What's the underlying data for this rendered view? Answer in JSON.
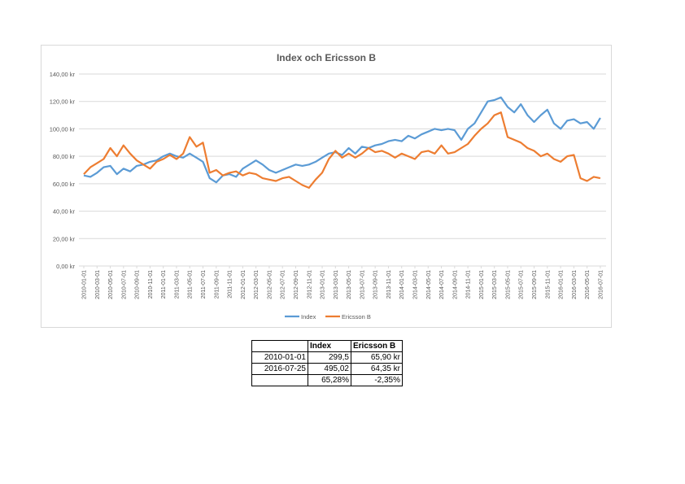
{
  "chart_data": {
    "type": "line",
    "title": "Index och Ericsson B",
    "xlabel": "",
    "ylabel": "",
    "ylim": [
      0,
      140
    ],
    "y_ticks": [
      "0,00 kr",
      "20,00 kr",
      "40,00 kr",
      "60,00 kr",
      "80,00 kr",
      "100,00 kr",
      "120,00 kr",
      "140,00 kr"
    ],
    "y_tick_values": [
      0,
      20,
      40,
      60,
      80,
      100,
      120,
      140
    ],
    "x_ticks": [
      "2010-01-01",
      "2010-03-01",
      "2010-05-01",
      "2010-07-01",
      "2010-09-01",
      "2010-11-01",
      "2011-01-01",
      "2011-03-01",
      "2011-05-01",
      "2011-07-01",
      "2011-09-01",
      "2011-11-01",
      "2012-01-01",
      "2012-03-01",
      "2012-05-01",
      "2012-07-01",
      "2012-09-01",
      "2012-11-01",
      "2013-01-01",
      "2013-03-01",
      "2013-05-01",
      "2013-07-01",
      "2013-09-01",
      "2013-11-01",
      "2014-01-01",
      "2014-03-01",
      "2014-05-01",
      "2014-07-01",
      "2014-09-01",
      "2014-11-01",
      "2015-01-01",
      "2015-03-01",
      "2015-05-01",
      "2015-07-01",
      "2015-09-01",
      "2015-11-01",
      "2016-01-01",
      "2016-03-01",
      "2016-05-01",
      "2016-07-01"
    ],
    "x_note": "monthly points from 2010-01 to 2016-07",
    "grid": true,
    "legend": "bottom",
    "series": [
      {
        "name": "Index",
        "color": "#5b9bd5",
        "values": [
          66,
          65,
          68,
          72,
          73,
          67,
          71,
          69,
          73,
          74,
          76,
          77,
          80,
          82,
          80,
          79,
          82,
          79,
          76,
          64,
          61,
          66,
          67,
          65,
          71,
          74,
          77,
          74,
          70,
          68,
          70,
          72,
          74,
          73,
          74,
          76,
          79,
          82,
          83,
          81,
          86,
          82,
          87,
          86,
          88,
          89,
          91,
          92,
          91,
          95,
          93,
          96,
          98,
          100,
          99,
          100,
          99,
          92,
          100,
          104,
          112,
          120,
          121,
          123,
          116,
          112,
          118,
          110,
          105,
          110,
          114,
          104,
          100,
          106,
          107,
          104,
          105,
          100,
          108
        ]
      },
      {
        "name": "Ericsson B",
        "color": "#ed7d31",
        "values": [
          67,
          72,
          75,
          78,
          86,
          80,
          88,
          82,
          77,
          74,
          71,
          76,
          78,
          81,
          78,
          82,
          94,
          87,
          90,
          68,
          70,
          66,
          68,
          69,
          66,
          68,
          67,
          64,
          63,
          62,
          64,
          65,
          62,
          59,
          57,
          63,
          68,
          78,
          84,
          79,
          82,
          79,
          82,
          86,
          83,
          84,
          82,
          79,
          82,
          80,
          78,
          83,
          84,
          82,
          88,
          82,
          83,
          86,
          89,
          95,
          100,
          104,
          110,
          112,
          94,
          92,
          90,
          86,
          84,
          80,
          82,
          78,
          76,
          80,
          81,
          64,
          62,
          65,
          64
        ]
      }
    ]
  },
  "table": {
    "headers": [
      "",
      "Index",
      "Ericsson B"
    ],
    "rows": [
      [
        "2010-01-01",
        "299,5",
        "65,90 kr"
      ],
      [
        "2016-07-25",
        "495,02",
        "64,35 kr"
      ],
      [
        "",
        "65,28%",
        "-2,35%"
      ]
    ]
  }
}
